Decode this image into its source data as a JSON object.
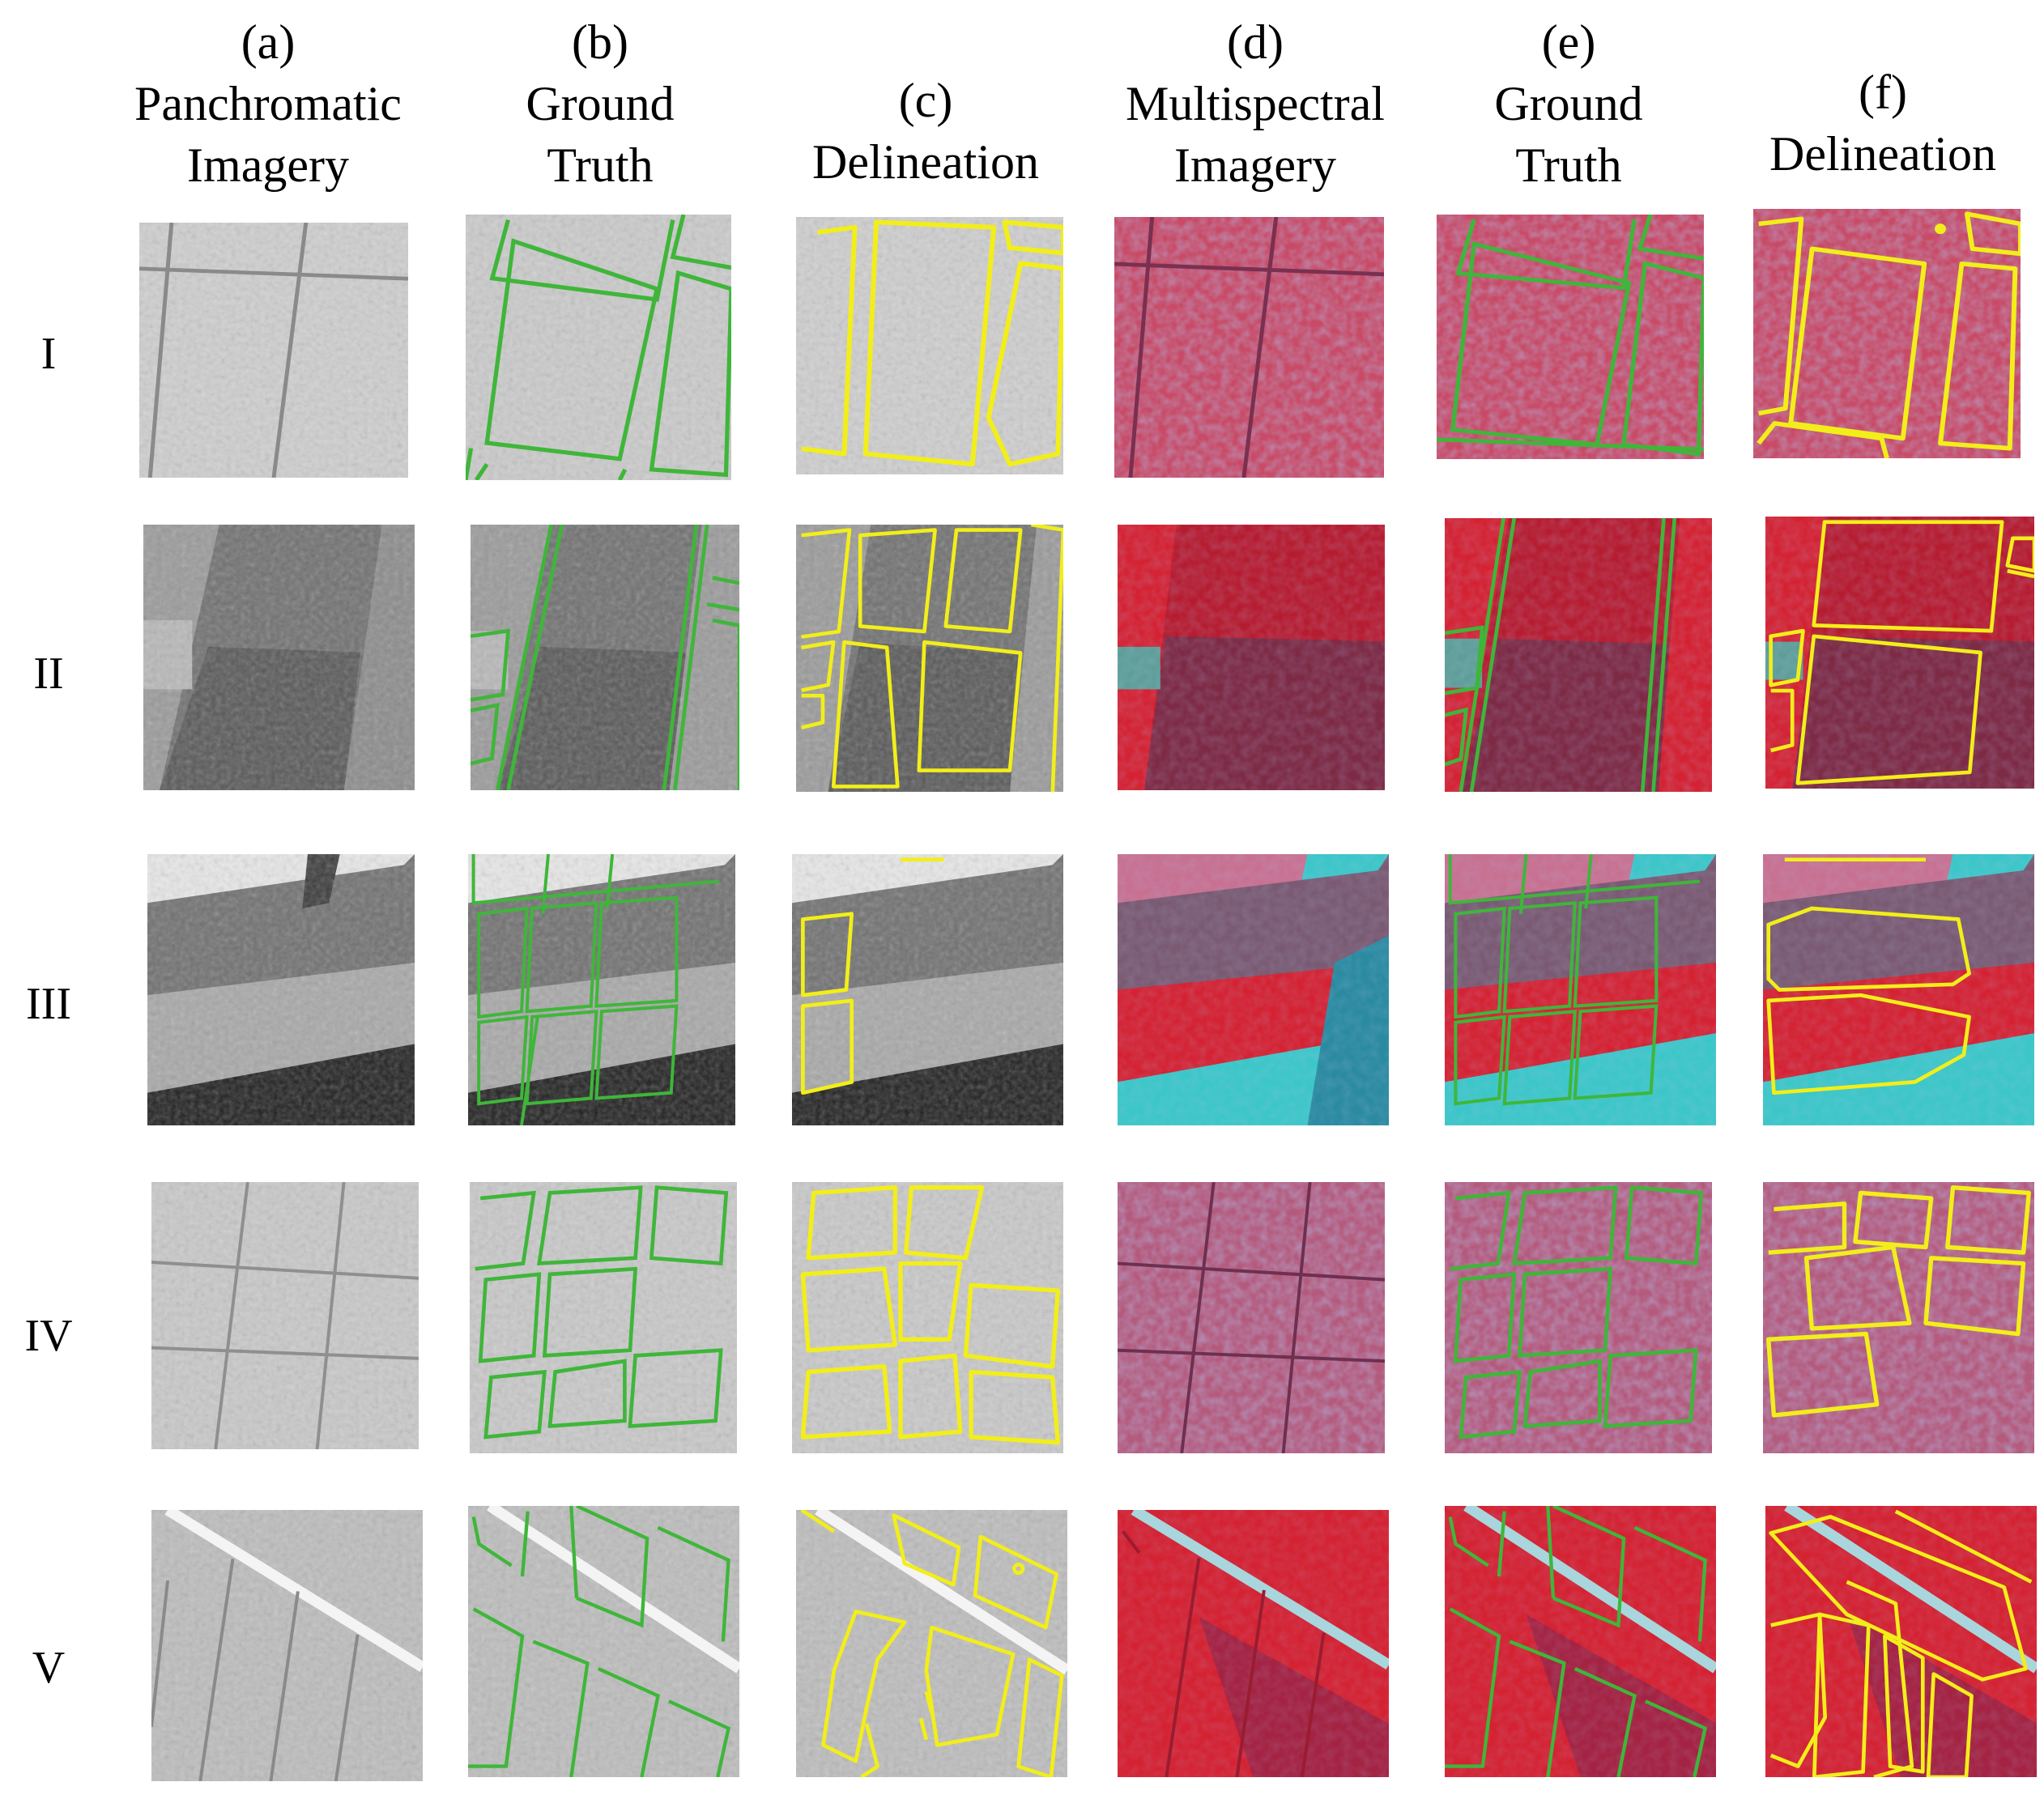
{
  "columns": [
    {
      "letter": "(a)",
      "title": [
        "Panchromatic",
        "Imagery"
      ]
    },
    {
      "letter": "(b)",
      "title": [
        "Ground",
        "Truth"
      ]
    },
    {
      "letter": "(c)",
      "title": [
        "Delineation"
      ]
    },
    {
      "letter": "(d)",
      "title": [
        "Multispectral",
        "Imagery"
      ]
    },
    {
      "letter": "(e)",
      "title": [
        "Ground",
        "Truth"
      ]
    },
    {
      "letter": "(f)",
      "title": [
        "Delineation"
      ]
    }
  ],
  "rows": [
    "I",
    "II",
    "III",
    "IV",
    "V"
  ],
  "colors": {
    "panchromatic_light": "#cfcfcf",
    "panchromatic_dark": "#6f6f6f",
    "multispectral_red": "#d42232",
    "multispectral_dark": "#8e3048",
    "multispectral_cyan": "#3cc6c8",
    "ground_truth": "#3fb63a",
    "delineation": "#f2ee1a"
  }
}
